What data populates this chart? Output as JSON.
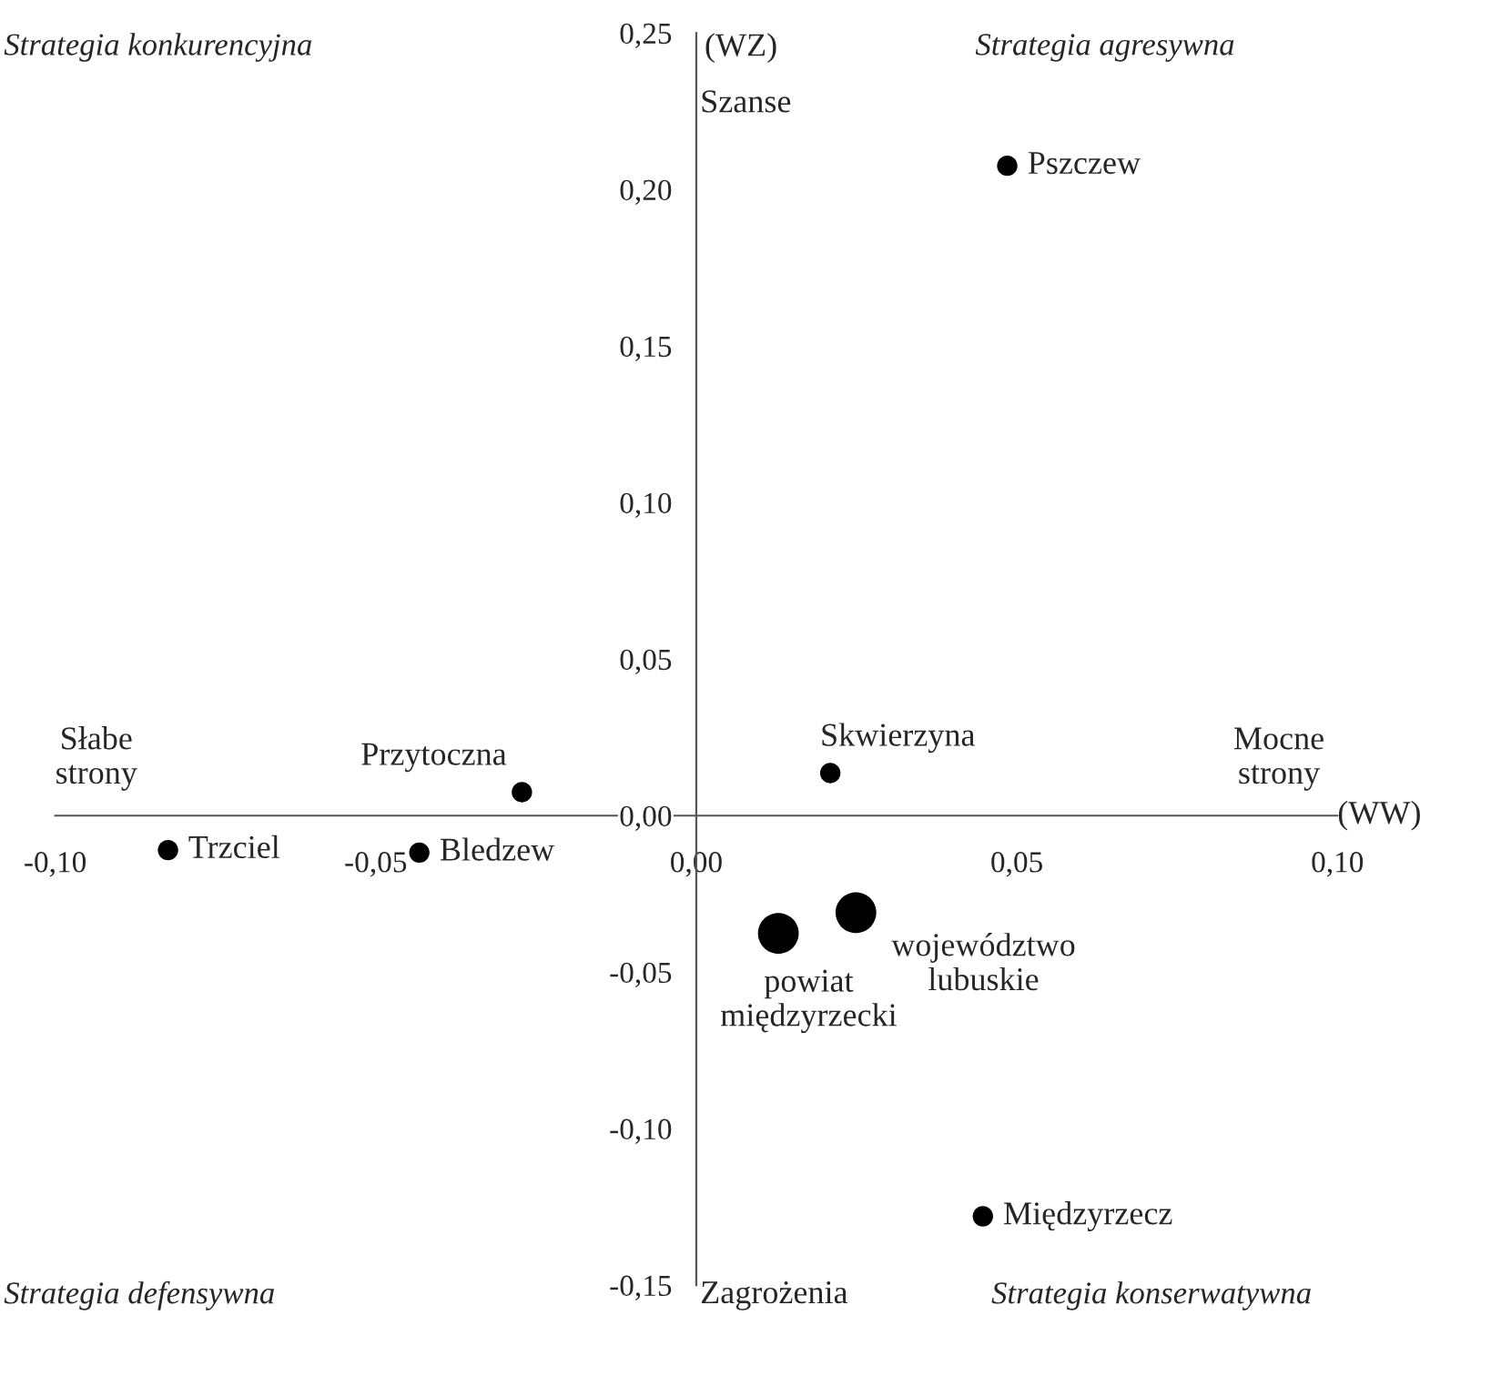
{
  "chart_data": {
    "type": "bubble",
    "xlabel": "(WW)",
    "ylabel": "(WZ)",
    "x": [
      -0.0824,
      -0.0432,
      -0.0272,
      0.0209,
      0.0485,
      0.0128,
      0.0249,
      0.0447
    ],
    "values": [
      -0.011,
      -0.0118,
      0.0075,
      0.0136,
      0.2076,
      -0.0376,
      -0.031,
      -0.128
    ],
    "sizes": [
      0.25,
      0.25,
      0.25,
      0.25,
      0.25,
      1,
      1,
      0.25
    ],
    "color": "#000000",
    "xlim": [
      -0.1,
      0.1
    ],
    "ylim": [
      -0.15,
      0.25
    ],
    "xticks": [
      {
        "value": -0.1,
        "label": "-0,10"
      },
      {
        "value": -0.05,
        "label": "-0,05"
      },
      {
        "value": 0.0,
        "label": "0,00"
      },
      {
        "value": 0.05,
        "label": "0,05"
      },
      {
        "value": 0.1,
        "label": "0,10"
      }
    ],
    "yticks": [
      {
        "value": -0.15,
        "label": "-0,15"
      },
      {
        "value": -0.1,
        "label": "-0,10"
      },
      {
        "value": -0.05,
        "label": "-0,05"
      },
      {
        "value": 0.0,
        "label": "0,00"
      },
      {
        "value": 0.05,
        "label": "0,05"
      },
      {
        "value": 0.1,
        "label": "0,10"
      },
      {
        "value": 0.15,
        "label": "0,15"
      },
      {
        "value": 0.2,
        "label": "0,20"
      },
      {
        "value": 0.25,
        "label": "0,25"
      }
    ],
    "grid": false,
    "legend": false,
    "annotations": [
      {
        "text": "Trzciel",
        "x": -0.0824,
        "y": -0.011
      },
      {
        "text": "Bledzew",
        "x": -0.0432,
        "y": -0.0118
      },
      {
        "text": "Przytoczna",
        "x": -0.0272,
        "y": 0.0075
      },
      {
        "text": "Skwierzyna",
        "x": 0.0209,
        "y": 0.0136
      },
      {
        "text": "Pszczew",
        "x": 0.0485,
        "y": 0.2076
      },
      {
        "text": "powiat\nmiędzyrzecki",
        "x": 0.0128,
        "y": -0.0376
      },
      {
        "text": "województwo\nlubuskie",
        "x": 0.0249,
        "y": -0.031
      },
      {
        "text": "Międzyrzecz",
        "x": 0.0447,
        "y": -0.128
      },
      "Strategia konkurencyjna",
      "Strategia agresywna",
      "Strategia defensywna",
      "Strategia konserwatywna",
      "Szanse",
      "Zagrożenia",
      "Słabe\nstrony",
      "Mocne\nstrony"
    ]
  }
}
